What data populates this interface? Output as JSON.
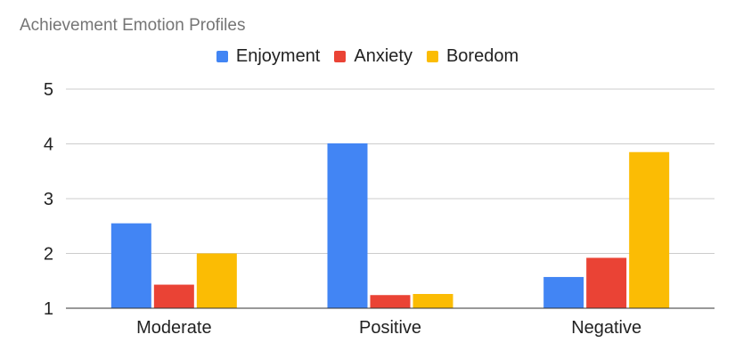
{
  "chart_data": {
    "type": "bar",
    "title": "Achievement Emotion Profiles",
    "categories": [
      "Moderate",
      "Positive",
      "Negative"
    ],
    "series": [
      {
        "name": "Enjoyment",
        "color": "#4285F4",
        "values": [
          2.55,
          4.01,
          1.57
        ]
      },
      {
        "name": "Anxiety",
        "color": "#EA4335",
        "values": [
          1.43,
          1.24,
          1.92
        ]
      },
      {
        "name": "Boredom",
        "color": "#FBBC04",
        "values": [
          2.0,
          1.26,
          3.85
        ]
      }
    ],
    "xlabel": "",
    "ylabel": "",
    "ylim": [
      1,
      5
    ],
    "yticks": [
      1,
      2,
      3,
      4,
      5
    ],
    "grid": true,
    "legend_position": "top-center"
  }
}
